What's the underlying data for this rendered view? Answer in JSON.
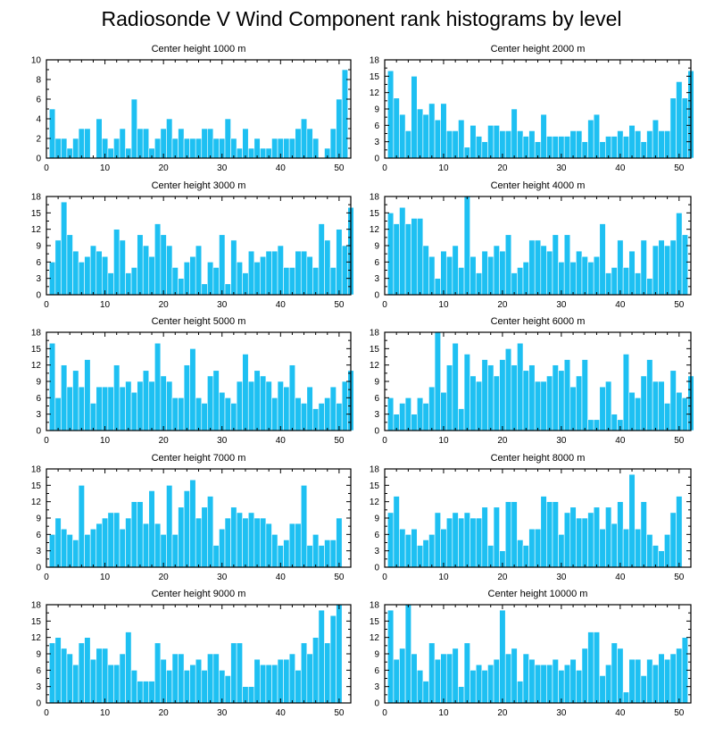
{
  "title": "Radiosonde V Wind Component rank histograms by level",
  "colors": {
    "bar": "#1ec0f2",
    "axis": "#000000",
    "background": "#ffffff"
  },
  "chart_data": [
    {
      "type": "bar",
      "title": "Center height 1000 m",
      "xlim": [
        0,
        52
      ],
      "ylim": [
        0,
        10
      ],
      "xticks": [
        "0",
        "10",
        "20",
        "30",
        "40",
        "50"
      ],
      "yticks": [
        "0",
        "2",
        "4",
        "6",
        "8",
        "10"
      ],
      "values": [
        5,
        2,
        2,
        1,
        2,
        3,
        3,
        0,
        4,
        2,
        1,
        2,
        3,
        1,
        6,
        3,
        3,
        1,
        2,
        3,
        4,
        2,
        3,
        2,
        2,
        2,
        3,
        3,
        2,
        2,
        4,
        2,
        1,
        3,
        1,
        2,
        1,
        1,
        2,
        2,
        2,
        2,
        3,
        4,
        3,
        2,
        0,
        1,
        3,
        6,
        9,
        0
      ]
    },
    {
      "type": "bar",
      "title": "Center height 2000 m",
      "xlim": [
        0,
        52
      ],
      "ylim": [
        0,
        18
      ],
      "xticks": [
        "0",
        "10",
        "20",
        "30",
        "40",
        "50"
      ],
      "yticks": [
        "0",
        "3",
        "6",
        "9",
        "12",
        "15",
        "18"
      ],
      "values": [
        16,
        11,
        8,
        5,
        15,
        9,
        8,
        10,
        7,
        10,
        5,
        5,
        7,
        2,
        6,
        4,
        3,
        6,
        6,
        5,
        5,
        9,
        5,
        4,
        5,
        3,
        8,
        4,
        4,
        4,
        4,
        5,
        5,
        3,
        7,
        8,
        3,
        4,
        4,
        5,
        4,
        6,
        5,
        3,
        5,
        7,
        5,
        5,
        11,
        14,
        11,
        16
      ]
    },
    {
      "type": "bar",
      "title": "Center height 3000 m",
      "xlim": [
        0,
        52
      ],
      "ylim": [
        0,
        18
      ],
      "xticks": [
        "0",
        "10",
        "20",
        "30",
        "40",
        "50"
      ],
      "yticks": [
        "0",
        "3",
        "6",
        "9",
        "12",
        "15",
        "18"
      ],
      "values": [
        6,
        10,
        17,
        11,
        8,
        6,
        7,
        9,
        8,
        7,
        4,
        12,
        10,
        4,
        5,
        11,
        9,
        7,
        13,
        11,
        9,
        5,
        3,
        6,
        7,
        9,
        2,
        6,
        5,
        11,
        2,
        10,
        6,
        4,
        8,
        6,
        7,
        8,
        8,
        9,
        5,
        5,
        8,
        8,
        7,
        5,
        13,
        10,
        5,
        12,
        9,
        16
      ]
    },
    {
      "type": "bar",
      "title": "Center height 4000 m",
      "xlim": [
        0,
        52
      ],
      "ylim": [
        0,
        18
      ],
      "xticks": [
        "0",
        "10",
        "20",
        "30",
        "40",
        "50"
      ],
      "yticks": [
        "0",
        "3",
        "6",
        "9",
        "12",
        "15",
        "18"
      ],
      "values": [
        15,
        13,
        16,
        13,
        14,
        14,
        9,
        7,
        3,
        8,
        7,
        9,
        5,
        18,
        7,
        4,
        8,
        7,
        9,
        8,
        11,
        4,
        5,
        6,
        10,
        10,
        9,
        8,
        11,
        6,
        11,
        6,
        8,
        7,
        6,
        7,
        13,
        4,
        5,
        10,
        5,
        8,
        4,
        10,
        3,
        9,
        10,
        9,
        10,
        15,
        11,
        0
      ]
    },
    {
      "type": "bar",
      "title": "Center height 5000 m",
      "xlim": [
        0,
        52
      ],
      "ylim": [
        0,
        18
      ],
      "xticks": [
        "0",
        "10",
        "20",
        "30",
        "40",
        "50"
      ],
      "yticks": [
        "0",
        "3",
        "6",
        "9",
        "12",
        "15",
        "18"
      ],
      "values": [
        16,
        6,
        12,
        8,
        11,
        8,
        13,
        5,
        8,
        8,
        8,
        12,
        8,
        9,
        7,
        9,
        11,
        9,
        16,
        10,
        9,
        6,
        6,
        12,
        15,
        6,
        5,
        10,
        11,
        7,
        6,
        5,
        9,
        14,
        9,
        11,
        10,
        9,
        6,
        9,
        8,
        12,
        6,
        5,
        8,
        4,
        5,
        6,
        8,
        5,
        9,
        11
      ]
    },
    {
      "type": "bar",
      "title": "Center height 6000 m",
      "xlim": [
        0,
        52
      ],
      "ylim": [
        0,
        18
      ],
      "xticks": [
        "0",
        "10",
        "20",
        "30",
        "40",
        "50"
      ],
      "yticks": [
        "0",
        "3",
        "6",
        "9",
        "12",
        "15",
        "18"
      ],
      "values": [
        6,
        3,
        5,
        6,
        3,
        6,
        5,
        8,
        18,
        7,
        12,
        16,
        4,
        14,
        10,
        9,
        13,
        12,
        10,
        13,
        15,
        12,
        16,
        11,
        12,
        9,
        9,
        10,
        12,
        11,
        13,
        8,
        10,
        13,
        2,
        2,
        8,
        9,
        3,
        2,
        14,
        7,
        6,
        10,
        13,
        9,
        9,
        5,
        11,
        7,
        6,
        10
      ]
    },
    {
      "type": "bar",
      "title": "Center height 7000 m",
      "xlim": [
        0,
        52
      ],
      "ylim": [
        0,
        18
      ],
      "xticks": [
        "0",
        "10",
        "20",
        "30",
        "40",
        "50"
      ],
      "yticks": [
        "0",
        "3",
        "6",
        "9",
        "12",
        "15",
        "18"
      ],
      "values": [
        6,
        9,
        7,
        6,
        5,
        15,
        6,
        7,
        8,
        9,
        10,
        10,
        7,
        9,
        12,
        12,
        8,
        14,
        8,
        6,
        15,
        6,
        11,
        14,
        16,
        9,
        11,
        13,
        4,
        7,
        9,
        11,
        10,
        9,
        10,
        9,
        9,
        8,
        6,
        4,
        5,
        8,
        8,
        15,
        4,
        6,
        4,
        5,
        5,
        9,
        0,
        0
      ]
    },
    {
      "type": "bar",
      "title": "Center height 8000 m",
      "xlim": [
        0,
        52
      ],
      "ylim": [
        0,
        18
      ],
      "xticks": [
        "0",
        "10",
        "20",
        "30",
        "40",
        "50"
      ],
      "yticks": [
        "0",
        "3",
        "6",
        "9",
        "12",
        "15",
        "18"
      ],
      "values": [
        10,
        13,
        7,
        6,
        7,
        4,
        5,
        6,
        10,
        7,
        9,
        10,
        9,
        10,
        9,
        9,
        11,
        4,
        11,
        3,
        12,
        12,
        5,
        4,
        7,
        7,
        13,
        12,
        12,
        6,
        10,
        11,
        9,
        9,
        10,
        11,
        7,
        11,
        8,
        12,
        7,
        17,
        7,
        12,
        6,
        4,
        3,
        6,
        10,
        13,
        0,
        0
      ]
    },
    {
      "type": "bar",
      "title": "Center height 9000 m",
      "xlim": [
        0,
        52
      ],
      "ylim": [
        0,
        18
      ],
      "xticks": [
        "0",
        "10",
        "20",
        "30",
        "40",
        "50"
      ],
      "yticks": [
        "0",
        "3",
        "6",
        "9",
        "12",
        "15",
        "18"
      ],
      "values": [
        11,
        12,
        10,
        9,
        7,
        11,
        12,
        8,
        10,
        10,
        7,
        7,
        9,
        13,
        6,
        4,
        4,
        4,
        11,
        8,
        6,
        9,
        9,
        6,
        7,
        8,
        6,
        9,
        9,
        6,
        5,
        11,
        11,
        3,
        3,
        8,
        7,
        7,
        7,
        8,
        8,
        9,
        6,
        11,
        9,
        12,
        17,
        11,
        16,
        18,
        0,
        0
      ]
    },
    {
      "type": "bar",
      "title": "Center height 10000 m",
      "xlim": [
        0,
        52
      ],
      "ylim": [
        0,
        18
      ],
      "xticks": [
        "0",
        "10",
        "20",
        "30",
        "40",
        "50"
      ],
      "yticks": [
        "0",
        "3",
        "6",
        "9",
        "12",
        "15",
        "18"
      ],
      "values": [
        17,
        8,
        10,
        18,
        9,
        6,
        4,
        11,
        8,
        9,
        9,
        10,
        3,
        11,
        6,
        7,
        6,
        7,
        8,
        17,
        9,
        10,
        4,
        9,
        8,
        7,
        7,
        7,
        8,
        6,
        7,
        8,
        6,
        10,
        13,
        13,
        5,
        7,
        11,
        10,
        2,
        8,
        8,
        5,
        8,
        7,
        9,
        8,
        9,
        10,
        12,
        0
      ]
    }
  ]
}
